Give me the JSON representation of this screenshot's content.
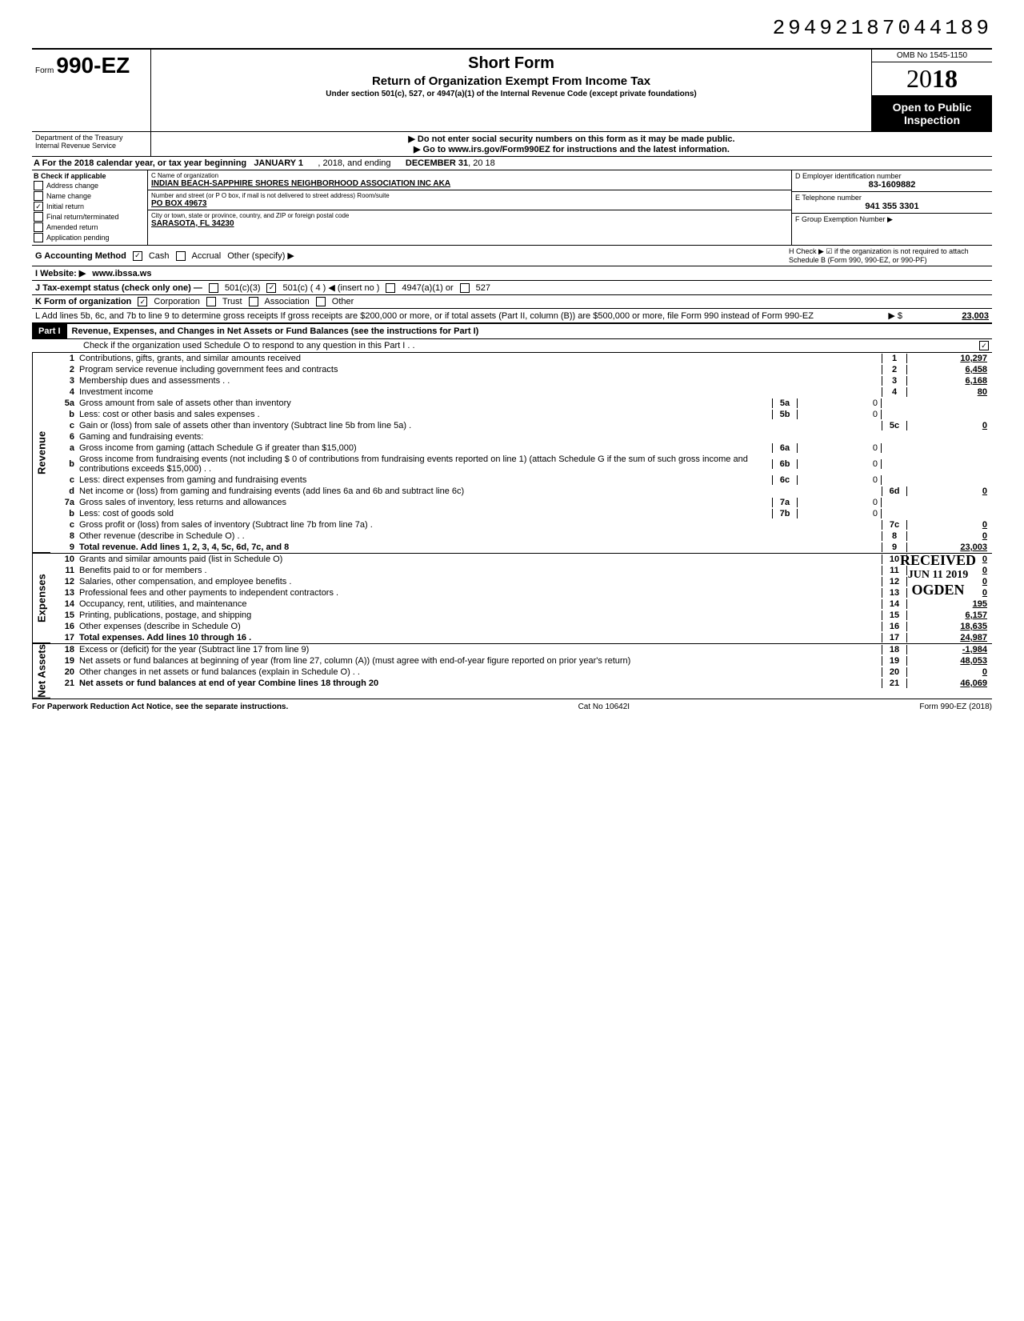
{
  "dln": "29492187044189",
  "omb": "OMB No 1545-1150",
  "year_prefix": "20",
  "year_bold": "18",
  "open_text": "Open to Public Inspection",
  "header": {
    "form_prefix": "Form",
    "form_number": "990-EZ",
    "title": "Short Form",
    "subtitle": "Return of Organization Exempt From Income Tax",
    "under": "Under section 501(c), 527, or 4947(a)(1) of the Internal Revenue Code (except private foundations)",
    "warn": "▶ Do not enter social security numbers on this form as it may be made public.",
    "goto": "▶ Go to www.irs.gov/Form990EZ for instructions and the latest information.",
    "dept1": "Department of the Treasury",
    "dept2": "Internal Revenue Service"
  },
  "rowA": {
    "label": "A For the 2018 calendar year, or tax year beginning",
    "begin": "JANUARY 1",
    "mid": ", 2018, and ending",
    "end": "DECEMBER 31",
    "tail": ", 20  18"
  },
  "colB": {
    "title": "B Check if applicable",
    "items": [
      "Address change",
      "Name change",
      "Initial return",
      "Final return/terminated",
      "Amended return",
      "Application pending"
    ],
    "checked_index": 2
  },
  "colC": {
    "name_lbl": "C Name of organization",
    "name_val": "INDIAN BEACH-SAPPHIRE SHORES NEIGHBORHOOD ASSOCIATION INC AKA",
    "addr_lbl": "Number and street (or P O  box, if mail is not delivered to street address)                       Room/suite",
    "addr_val": "PO BOX 49673",
    "city_lbl": "City or town, state or province, country, and ZIP or foreign postal code",
    "city_val": "SARASOTA, FL 34230"
  },
  "colDE": {
    "d_lbl": "D Employer identification number",
    "d_val": "83-1609882",
    "e_lbl": "E Telephone number",
    "e_val": "941 355 3301",
    "f_lbl": "F Group Exemption Number ▶"
  },
  "rowG": {
    "g": "G Accounting Method",
    "cash": "Cash",
    "accrual": "Accrual",
    "other": "Other (specify) ▶",
    "h": "H Check ▶ ☑ if the organization is not required to attach Schedule B (Form 990, 990-EZ, or 990-PF)"
  },
  "rowI": {
    "i": "I Website: ▶",
    "val": "www.ibssa.ws"
  },
  "rowJ": {
    "j": "J Tax-exempt status (check only one) —",
    "o1": "501(c)(3)",
    "o2": "501(c) (  4  ) ◀ (insert no )",
    "o3": "4947(a)(1) or",
    "o4": "527"
  },
  "rowK": {
    "k": "K Form of organization",
    "o1": "Corporation",
    "o2": "Trust",
    "o3": "Association",
    "o4": "Other"
  },
  "rowL": {
    "text": "L Add lines 5b, 6c, and 7b to line 9 to determine gross receipts  If gross receipts are $200,000 or more, or if total assets (Part II, column (B)) are $500,000 or more, file Form 990 instead of Form 990-EZ",
    "arrow": "▶  $",
    "val": "23,003"
  },
  "part1": {
    "label": "Part I",
    "title": "Revenue, Expenses, and Changes in Net Assets or Fund Balances (see the instructions for Part I)",
    "check_line": "Check if the organization used Schedule O to respond to any question in this Part I  .   .",
    "checked": "☑"
  },
  "sections": {
    "revenue": "Revenue",
    "expenses": "Expenses",
    "netassets": "Net Assets"
  },
  "lines": [
    {
      "n": "1",
      "t": "Contributions, gifts, grants, and similar amounts received",
      "rn": "1",
      "rv": "10,297"
    },
    {
      "n": "2",
      "t": "Program service revenue including government fees and contracts",
      "rn": "2",
      "rv": "6,458"
    },
    {
      "n": "3",
      "t": "Membership dues and assessments .  .",
      "rn": "3",
      "rv": "6,168"
    },
    {
      "n": "4",
      "t": "Investment income",
      "rn": "4",
      "rv": "80"
    },
    {
      "n": "5a",
      "t": "Gross amount from sale of assets other than inventory",
      "mn": "5a",
      "mv": "0"
    },
    {
      "n": "b",
      "t": "Less: cost or other basis and sales expenses .",
      "mn": "5b",
      "mv": "0"
    },
    {
      "n": "c",
      "t": "Gain or (loss) from sale of assets other than inventory (Subtract line 5b from line 5a)  .",
      "rn": "5c",
      "rv": "0"
    },
    {
      "n": "6",
      "t": "Gaming and fundraising events:"
    },
    {
      "n": "a",
      "t": "Gross income from gaming (attach Schedule G if greater than $15,000)",
      "mn": "6a",
      "mv": "0"
    },
    {
      "n": "b",
      "t": "Gross income from fundraising events (not including  $                    0 of contributions from fundraising events reported on line 1) (attach Schedule G if the sum of such gross income and contributions exceeds $15,000) .   .",
      "mn": "6b",
      "mv": "0"
    },
    {
      "n": "c",
      "t": "Less: direct expenses from gaming and fundraising events",
      "mn": "6c",
      "mv": "0"
    },
    {
      "n": "d",
      "t": "Net income or (loss) from gaming and fundraising events (add lines 6a and 6b and subtract line 6c)",
      "rn": "6d",
      "rv": "0"
    },
    {
      "n": "7a",
      "t": "Gross sales of inventory, less returns and allowances",
      "mn": "7a",
      "mv": "0"
    },
    {
      "n": "b",
      "t": "Less: cost of goods sold",
      "mn": "7b",
      "mv": "0"
    },
    {
      "n": "c",
      "t": "Gross profit or (loss) from sales of inventory (Subtract line 7b from line 7a)   .",
      "rn": "7c",
      "rv": "0"
    },
    {
      "n": "8",
      "t": "Other revenue (describe in Schedule O) .   .",
      "rn": "8",
      "rv": "0"
    },
    {
      "n": "9",
      "t": "Total revenue. Add lines 1, 2, 3, 4, 5c, 6d, 7c, and 8",
      "rn": "9",
      "rv": "23,003",
      "bold": true
    }
  ],
  "exp_lines": [
    {
      "n": "10",
      "t": "Grants and similar amounts paid (list in Schedule O)",
      "rn": "10",
      "rv": "0"
    },
    {
      "n": "11",
      "t": "Benefits paid to or for members   .",
      "rn": "11",
      "rv": "0"
    },
    {
      "n": "12",
      "t": "Salaries, other compensation, and employee benefits .",
      "rn": "12",
      "rv": "0"
    },
    {
      "n": "13",
      "t": "Professional fees and other payments to independent contractors .",
      "rn": "13",
      "rv": "0"
    },
    {
      "n": "14",
      "t": "Occupancy, rent, utilities, and maintenance",
      "rn": "14",
      "rv": "195"
    },
    {
      "n": "15",
      "t": "Printing, publications, postage, and shipping",
      "rn": "15",
      "rv": "6,157"
    },
    {
      "n": "16",
      "t": "Other expenses (describe in Schedule O)",
      "rn": "16",
      "rv": "18,635"
    },
    {
      "n": "17",
      "t": "Total expenses. Add lines 10 through 16  .",
      "rn": "17",
      "rv": "24,987",
      "bold": true
    }
  ],
  "na_lines": [
    {
      "n": "18",
      "t": "Excess or (deficit) for the year (Subtract line 17 from line 9)",
      "rn": "18",
      "rv": "-1,984"
    },
    {
      "n": "19",
      "t": "Net assets or fund balances at beginning of year (from line 27, column (A)) (must agree with end-of-year figure reported on prior year's return)",
      "rn": "19",
      "rv": "48,053"
    },
    {
      "n": "20",
      "t": "Other changes in net assets or fund balances (explain in Schedule O) .   .",
      "rn": "20",
      "rv": "0"
    },
    {
      "n": "21",
      "t": "Net assets or fund balances at end of year  Combine lines 18 through 20",
      "rn": "21",
      "rv": "46,069",
      "bold": true
    }
  ],
  "footer": {
    "pra": "For Paperwork Reduction Act Notice, see the separate instructions.",
    "cat": "Cat No 10642I",
    "form": "Form 990-EZ (2018)"
  },
  "stamp": {
    "l1": "RECEIVED",
    "l2": "JUN 11 2019",
    "l3": "OGDEN"
  },
  "colors": {
    "bg": "#ffffff",
    "text": "#000000",
    "shade": "#d0d0d0"
  }
}
